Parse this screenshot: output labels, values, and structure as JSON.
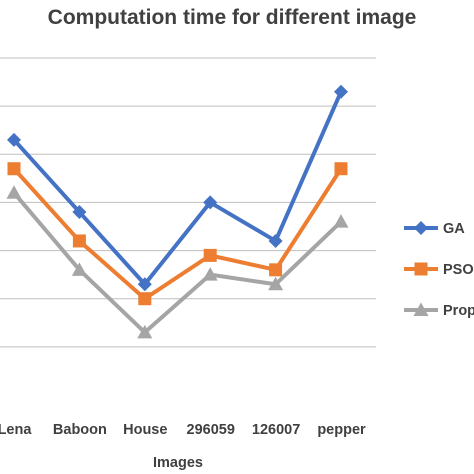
{
  "chart_data": {
    "type": "line",
    "title": "Computation time for different image",
    "xlabel": "Images",
    "ylabel": "",
    "categories": [
      "Lena",
      "Baboon",
      "House",
      "296059",
      "126007",
      "pepper"
    ],
    "ylim": [
      0,
      7
    ],
    "grid": true,
    "legend_position": "right",
    "series": [
      {
        "name": "GA",
        "legend_label": "GA",
        "color": "#4472C4",
        "marker": "diamond",
        "values": [
          5.3,
          3.8,
          2.3,
          4.0,
          3.2,
          6.3
        ]
      },
      {
        "name": "PSO",
        "legend_label": "PSO",
        "color": "#ED7D31",
        "marker": "square",
        "values": [
          4.7,
          3.2,
          2.0,
          2.9,
          2.6,
          4.7
        ]
      },
      {
        "name": "Proposed",
        "legend_label": "Prop",
        "color": "#A5A5A5",
        "marker": "triangle",
        "values": [
          4.2,
          2.6,
          1.3,
          2.5,
          2.3,
          3.6
        ]
      }
    ]
  }
}
